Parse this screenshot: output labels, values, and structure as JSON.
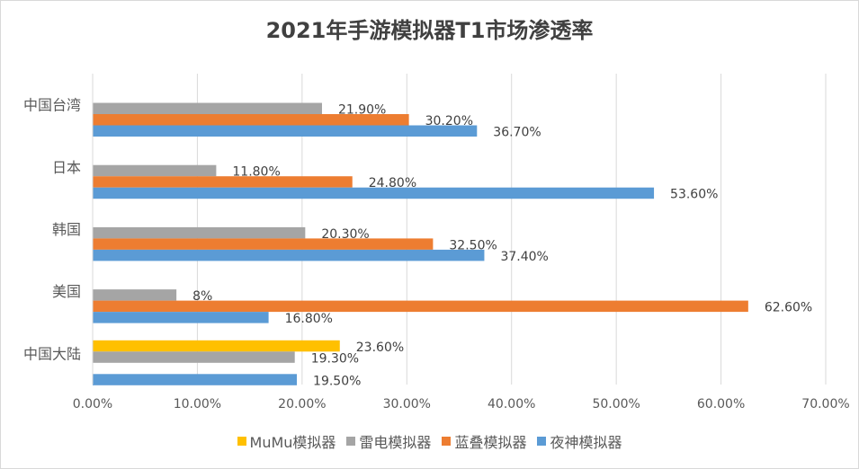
{
  "chart_data": {
    "type": "bar",
    "orientation": "horizontal",
    "title": "2021年手游模拟器T1市场渗透率",
    "xlabel": "",
    "ylabel": "",
    "xlim": [
      0,
      70
    ],
    "x_ticks": [
      "0.00%",
      "10.00%",
      "20.00%",
      "30.00%",
      "40.00%",
      "50.00%",
      "60.00%",
      "70.00%"
    ],
    "grid": "vertical",
    "legend_position": "bottom",
    "categories": [
      "中国台湾",
      "日本",
      "韩国",
      "美国",
      "中国大陆"
    ],
    "series": [
      {
        "name": "MuMu模拟器",
        "color": "#ffc000",
        "values": [
          null,
          null,
          null,
          null,
          23.6
        ],
        "labels": [
          null,
          null,
          null,
          null,
          "23.60%"
        ]
      },
      {
        "name": "雷电模拟器",
        "color": "#a5a5a5",
        "values": [
          21.9,
          11.8,
          20.3,
          8,
          19.3
        ],
        "labels": [
          "21.90%",
          "11.80%",
          "20.30%",
          "8%",
          "19.30%"
        ]
      },
      {
        "name": "蓝叠模拟器",
        "color": "#ed7d31",
        "values": [
          30.2,
          24.8,
          32.5,
          62.6,
          null
        ],
        "labels": [
          "30.20%",
          "24.80%",
          "32.50%",
          "62.60%",
          null
        ]
      },
      {
        "name": "夜神模拟器",
        "color": "#5b9bd5",
        "values": [
          36.7,
          53.6,
          37.4,
          16.8,
          19.5
        ],
        "labels": [
          "36.70%",
          "53.60%",
          "37.40%",
          "16.80%",
          "19.50%"
        ]
      }
    ]
  }
}
